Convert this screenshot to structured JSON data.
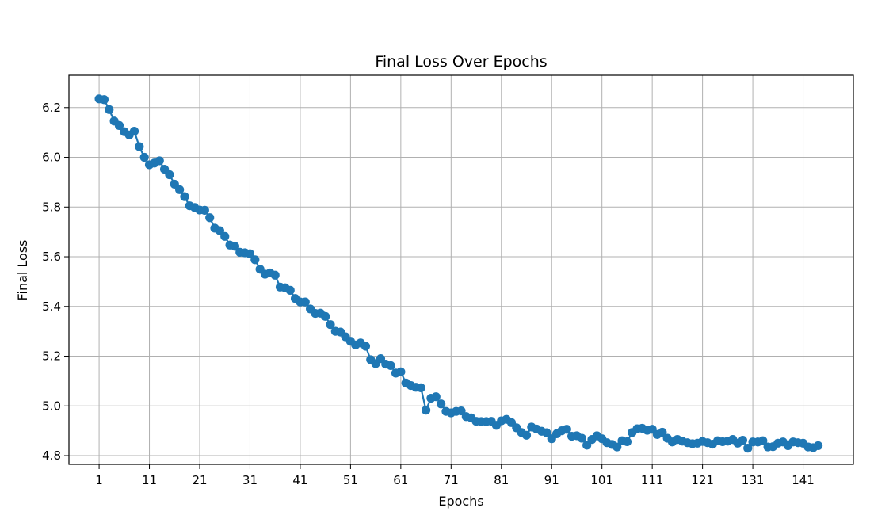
{
  "chart_data": {
    "type": "line",
    "title": "Final Loss Over Epochs",
    "xlabel": "Epochs",
    "ylabel": "Final Loss",
    "xlim": [
      -5,
      151
    ],
    "ylim": [
      4.765,
      6.33
    ],
    "grid": true,
    "marker": "circle",
    "x_ticks": [
      1,
      11,
      21,
      31,
      41,
      51,
      61,
      71,
      81,
      91,
      101,
      111,
      121,
      131,
      141
    ],
    "y_ticks": [
      4.8,
      5.0,
      5.2,
      5.4,
      5.6,
      5.8,
      6.0,
      6.2
    ],
    "y_tick_labels": [
      "4.8",
      "5.0",
      "5.2",
      "5.4",
      "5.6",
      "5.8",
      "6.0",
      "6.2"
    ],
    "series": [
      {
        "color": "#1f77b4",
        "x_start": 1,
        "values": [
          6.235,
          6.232,
          6.192,
          6.146,
          6.128,
          6.103,
          6.09,
          6.105,
          6.043,
          6.0,
          5.97,
          5.977,
          5.986,
          5.952,
          5.93,
          5.892,
          5.87,
          5.842,
          5.805,
          5.798,
          5.788,
          5.787,
          5.757,
          5.715,
          5.705,
          5.682,
          5.647,
          5.642,
          5.618,
          5.616,
          5.612,
          5.588,
          5.55,
          5.53,
          5.535,
          5.526,
          5.478,
          5.475,
          5.465,
          5.432,
          5.418,
          5.418,
          5.39,
          5.372,
          5.373,
          5.36,
          5.327,
          5.3,
          5.297,
          5.278,
          5.26,
          5.245,
          5.253,
          5.24,
          5.186,
          5.17,
          5.19,
          5.168,
          5.162,
          5.132,
          5.137,
          5.092,
          5.082,
          5.075,
          5.073,
          4.983,
          5.031,
          5.037,
          5.008,
          4.978,
          4.972,
          4.978,
          4.98,
          4.957,
          4.952,
          4.938,
          4.937,
          4.937,
          4.938,
          4.922,
          4.94,
          4.946,
          4.933,
          4.912,
          4.893,
          4.882,
          4.915,
          4.907,
          4.898,
          4.892,
          4.868,
          4.888,
          4.9,
          4.906,
          4.878,
          4.88,
          4.87,
          4.842,
          4.865,
          4.88,
          4.868,
          4.852,
          4.845,
          4.835,
          4.86,
          4.856,
          4.893,
          4.908,
          4.91,
          4.902,
          4.906,
          4.885,
          4.894,
          4.87,
          4.855,
          4.865,
          4.858,
          4.852,
          4.848,
          4.85,
          4.857,
          4.852,
          4.846,
          4.86,
          4.856,
          4.858,
          4.865,
          4.85,
          4.862,
          4.83,
          4.855,
          4.855,
          4.86,
          4.835,
          4.836,
          4.85,
          4.855,
          4.84,
          4.855,
          4.852,
          4.85,
          4.835,
          4.832,
          4.84
        ]
      }
    ]
  }
}
